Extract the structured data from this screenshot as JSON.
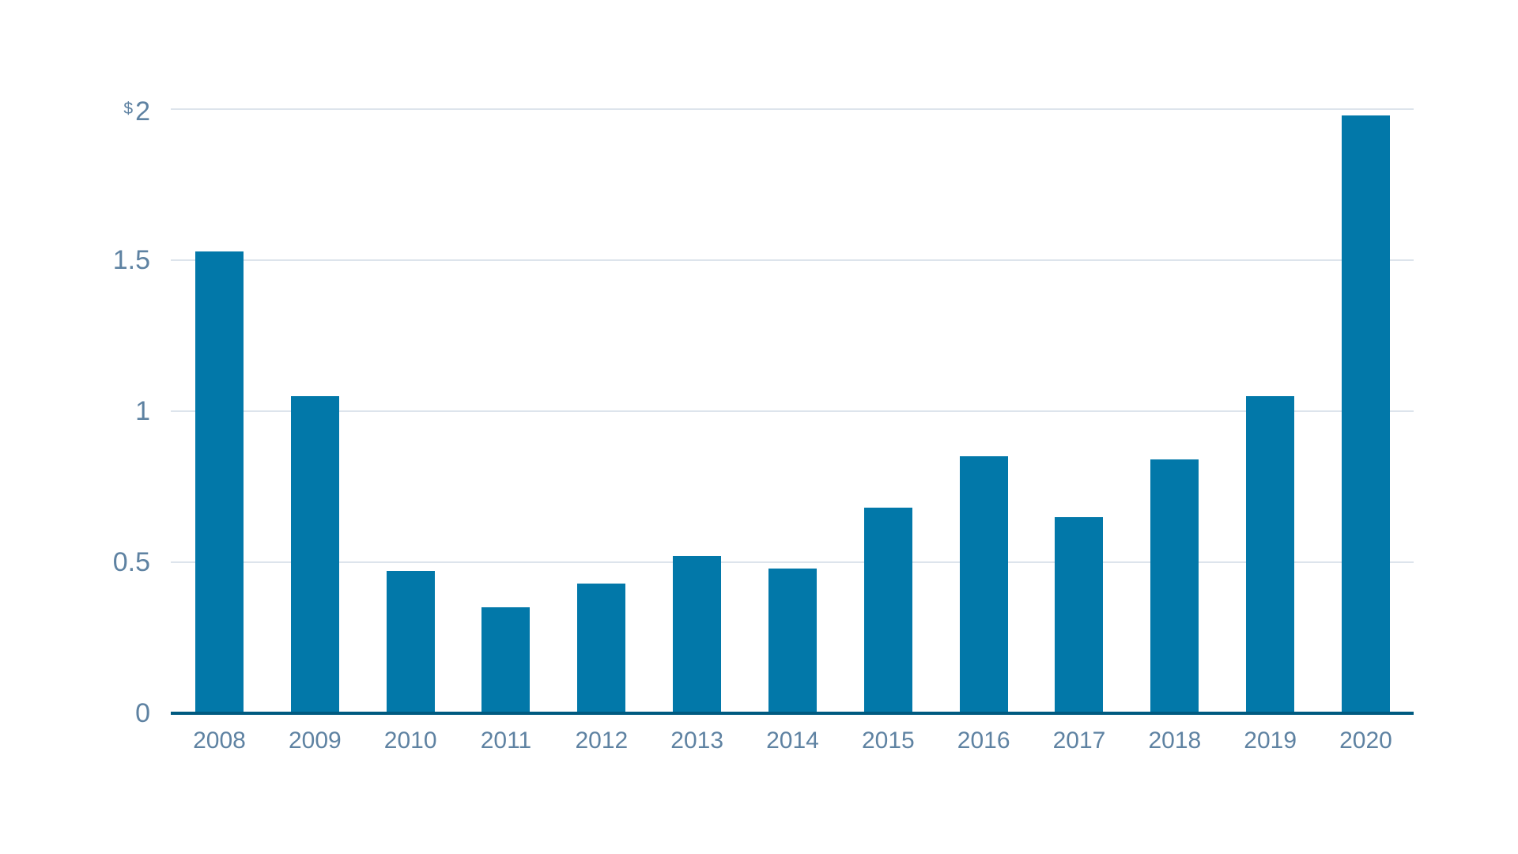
{
  "chart_data": {
    "type": "bar",
    "categories": [
      "2008",
      "2009",
      "2010",
      "2011",
      "2012",
      "2013",
      "2014",
      "2015",
      "2016",
      "2017",
      "2018",
      "2019",
      "2020"
    ],
    "values": [
      1.53,
      1.05,
      0.47,
      0.35,
      0.43,
      0.52,
      0.48,
      0.68,
      0.85,
      0.65,
      0.84,
      1.05,
      1.98
    ],
    "ylim": [
      0,
      2
    ],
    "grid": "horizontal-gridlines-on",
    "legend": "none",
    "y_ticks": [
      {
        "value": 2,
        "prefix": "$",
        "label": "2"
      },
      {
        "value": 1.5,
        "prefix": "",
        "label": "1.5"
      },
      {
        "value": 1,
        "prefix": "",
        "label": "1"
      },
      {
        "value": 0.5,
        "prefix": "",
        "label": "0.5"
      },
      {
        "value": 0,
        "prefix": "",
        "label": "0"
      }
    ],
    "colors": {
      "bar": "#0278a9",
      "axis_line": "#005a80",
      "gridline": "#dde4ec",
      "tick_text": "#5e82a2"
    }
  }
}
